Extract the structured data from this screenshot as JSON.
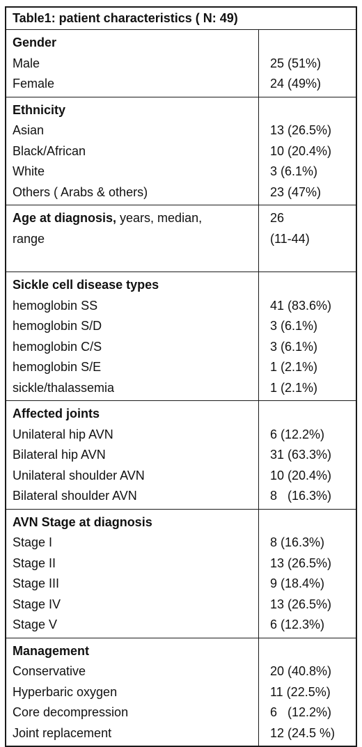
{
  "title": "Table1: patient characteristics ( N: 49)",
  "sections": {
    "gender": {
      "header": "Gender",
      "rows": [
        {
          "label": "Male",
          "value": "25 (51%)"
        },
        {
          "label": "Female",
          "value": "24 (49%)"
        }
      ]
    },
    "ethnicity": {
      "header": "Ethnicity",
      "rows": [
        {
          "label": "Asian",
          "value": "13 (26.5%)"
        },
        {
          "label": "Black/African",
          "value": "10 (20.4%)"
        },
        {
          "label": "White",
          "value": "3 (6.1%)"
        },
        {
          "label": "Others ( Arabs & others)",
          "value": "23 (47%)"
        }
      ]
    },
    "age": {
      "header_bold": "Age at diagnosis,",
      "header_rest": " years, median,",
      "header_line2": "range",
      "value_line1": "26",
      "value_line2": "(11-44)"
    },
    "scd_types": {
      "header": "Sickle cell disease types",
      "rows": [
        {
          "label": "hemoglobin SS",
          "value": "41 (83.6%)"
        },
        {
          "label": "hemoglobin S/D",
          "value": "3 (6.1%)"
        },
        {
          "label": "hemoglobin C/S",
          "value": "3 (6.1%)"
        },
        {
          "label": "hemoglobin S/E",
          "value": "1 (2.1%)"
        },
        {
          "label": "sickle/thalassemia",
          "value": "1 (2.1%)"
        }
      ]
    },
    "joints": {
      "header": "Affected joints",
      "rows": [
        {
          "label": "Unilateral hip AVN",
          "value": "6 (12.2%)"
        },
        {
          "label": "Bilateral hip AVN",
          "value": "31 (63.3%)"
        },
        {
          "label": "Unilateral shoulder AVN",
          "value": "10 (20.4%)"
        },
        {
          "label": "Bilateral shoulder AVN",
          "value": "8   (16.3%)"
        }
      ]
    },
    "avn_stage": {
      "header": "AVN Stage at diagnosis",
      "rows": [
        {
          "label": "Stage I",
          "value": "8 (16.3%)"
        },
        {
          "label": "Stage II",
          "value": "13 (26.5%)"
        },
        {
          "label": "Stage III",
          "value": "9 (18.4%)"
        },
        {
          "label": "Stage IV",
          "value": "13 (26.5%)"
        },
        {
          "label": "Stage V",
          "value": "6 (12.3%)"
        }
      ]
    },
    "management": {
      "header": "Management",
      "rows": [
        {
          "label": "Conservative",
          "value": "20 (40.8%)"
        },
        {
          "label": "Hyperbaric oxygen",
          "value": "11 (22.5%)"
        },
        {
          "label": "Core decompression",
          "value": "6   (12.2%)"
        },
        {
          "label": "Joint replacement",
          "value": "12 (24.5 %)"
        }
      ]
    }
  }
}
